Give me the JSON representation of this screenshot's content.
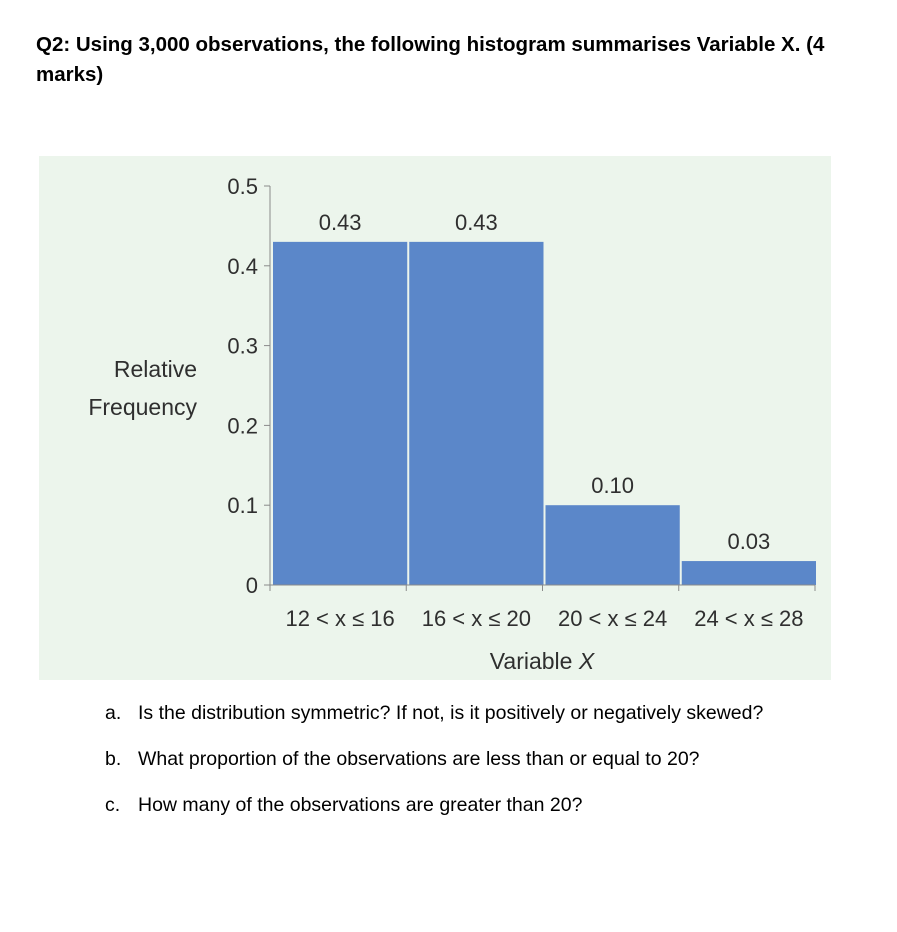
{
  "question": {
    "text": "Q2: Using 3,000 observations, the following histogram summarises Variable X. (4 marks)"
  },
  "chart_data": {
    "type": "bar",
    "categories": [
      "12 < x ≤ 16",
      "16 < x ≤ 20",
      "20 < x ≤ 24",
      "24 < x ≤ 28"
    ],
    "values": [
      0.43,
      0.43,
      0.1,
      0.03
    ],
    "value_labels": [
      "0.43",
      "0.43",
      "0.10",
      "0.03"
    ],
    "ylabel_lines": [
      "Relative",
      "Frequency"
    ],
    "xlabel_text": "Variable",
    "xlabel_var": "X",
    "ylim": [
      0,
      0.5
    ],
    "yticks": [
      {
        "value": 0,
        "label": "0"
      },
      {
        "value": 0.1,
        "label": "0.1"
      },
      {
        "value": 0.2,
        "label": "0.2"
      },
      {
        "value": 0.3,
        "label": "0.3"
      },
      {
        "value": 0.4,
        "label": "0.4"
      },
      {
        "value": 0.5,
        "label": "0.5"
      }
    ],
    "grid": false,
    "bar_color": "#5b87c9",
    "background_color": "#ecf5ec"
  },
  "parts": [
    {
      "letter": "a.",
      "text": "Is the distribution symmetric? If not, is it positively or negatively skewed?"
    },
    {
      "letter": "b.",
      "text": "What proportion of the observations are less than or equal to 20?"
    },
    {
      "letter": "c.",
      "text": "How many of the observations are greater than 20?"
    }
  ]
}
